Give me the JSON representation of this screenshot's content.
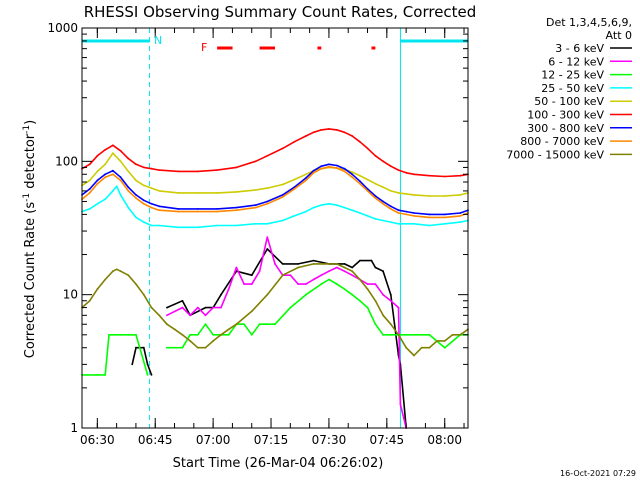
{
  "chart_data": {
    "type": "line",
    "title": "RHESSI Observing Summary Count Rates, Corrected",
    "xlabel": "Start Time (26-Mar-04 06:26:02)",
    "ylabel_main": "Corrected Count Rate (s",
    "ylabel_sup1": "-1",
    "ylabel_mid": " detector",
    "ylabel_sup2": "-1",
    "ylabel_end": ")",
    "yscale": "log",
    "ylim": [
      1,
      1000
    ],
    "xlim_minutes": [
      0,
      100
    ],
    "x_unit": "minutes after 06:26:02",
    "y_ticks": [
      {
        "value": 1,
        "label": "1"
      },
      {
        "value": 10,
        "label": "10"
      },
      {
        "value": 100,
        "label": "100"
      },
      {
        "value": 1000,
        "label": "1000"
      }
    ],
    "x_ticks": [
      {
        "minute": 3.97,
        "label": "06:30"
      },
      {
        "minute": 18.97,
        "label": "06:45"
      },
      {
        "minute": 33.97,
        "label": "07:00"
      },
      {
        "minute": 48.97,
        "label": "07:15"
      },
      {
        "minute": 63.97,
        "label": "07:30"
      },
      {
        "minute": 78.97,
        "label": "07:45"
      },
      {
        "minute": 93.97,
        "label": "08:00"
      }
    ],
    "legend": {
      "placement": "right",
      "header_lines": [
        "Det 1,3,4,5,6,9,",
        "Att 0"
      ]
    },
    "annotations": {
      "night_label": "N",
      "flare_label": "F",
      "night_intervals_minutes": [
        [
          0,
          17.5
        ],
        [
          82.5,
          100
        ]
      ],
      "night_boundaries_minutes": [
        0,
        17.5,
        82.5,
        100
      ],
      "flare_segments_minutes": [
        [
          35,
          39
        ],
        [
          46,
          50
        ],
        [
          61,
          62
        ],
        [
          75,
          76
        ]
      ],
      "night_color": "#00e5ee",
      "flare_color": "#ff0000"
    },
    "corner_text": "16-Oct-2021 07:29",
    "series": [
      {
        "name": "3 - 6 keV",
        "color": "#000000",
        "x": [
          0,
          5,
          10,
          13,
          14,
          16,
          17,
          18,
          19,
          20,
          22,
          26,
          28,
          32,
          34,
          36,
          40,
          44,
          48,
          52,
          56,
          60,
          64,
          68,
          70,
          72,
          75,
          76,
          78,
          80,
          82,
          82.5,
          84,
          86,
          88,
          92,
          96,
          100
        ],
        "y": [
          null,
          null,
          null,
          3,
          4,
          4,
          3,
          2.5,
          null,
          null,
          8,
          9,
          7,
          8,
          8,
          10,
          15,
          14,
          22,
          17,
          17,
          18,
          17,
          17,
          16,
          18,
          18,
          16,
          15,
          10,
          3.5,
          3,
          1,
          null,
          null,
          null,
          null,
          null
        ]
      },
      {
        "name": "6 - 12 keV",
        "color": "#ff00ff",
        "x": [
          0,
          5,
          10,
          20,
          22,
          26,
          28,
          30,
          32,
          34,
          36,
          38,
          40,
          42,
          44,
          46,
          48,
          50,
          52,
          54,
          56,
          58,
          60,
          62,
          64,
          66,
          68,
          70,
          72,
          74,
          76,
          78,
          80,
          82,
          82.5,
          84,
          86,
          88,
          92,
          96,
          100
        ],
        "y": [
          null,
          null,
          null,
          null,
          7,
          8,
          7,
          8,
          7,
          8,
          8,
          11,
          16,
          12,
          12,
          15,
          27,
          17,
          14,
          14,
          12,
          12,
          13,
          14,
          15,
          16,
          15,
          14,
          13,
          12,
          12,
          10,
          9,
          8,
          1.5,
          1,
          null,
          null,
          null,
          null,
          null
        ]
      },
      {
        "name": "12 - 25 keV",
        "color": "#00ff00",
        "x": [
          0,
          4,
          6,
          7,
          10,
          12,
          14,
          17,
          18,
          19,
          20,
          22,
          26,
          28,
          30,
          32,
          34,
          36,
          38,
          40,
          42,
          44,
          46,
          48,
          50,
          54,
          58,
          62,
          64,
          66,
          68,
          70,
          72,
          74,
          76,
          78,
          80,
          82,
          86,
          90,
          94,
          98,
          100
        ],
        "y": [
          2.5,
          2.5,
          2.5,
          5,
          5,
          5,
          5,
          2.5,
          null,
          null,
          null,
          4,
          4,
          5,
          5,
          6,
          5,
          5,
          5,
          6,
          6,
          5,
          6,
          6,
          6,
          8,
          10,
          12,
          13,
          12,
          11,
          10,
          9,
          8,
          6,
          5,
          5,
          5,
          5,
          5,
          4,
          5,
          5
        ]
      },
      {
        "name": "25 - 50 keV",
        "color": "#00ffff",
        "x": [
          0,
          2,
          4,
          6,
          8,
          9,
          10,
          12,
          14,
          16,
          18,
          20,
          25,
          30,
          35,
          40,
          45,
          48,
          52,
          55,
          58,
          60,
          62,
          64,
          66,
          68,
          70,
          72,
          74,
          76,
          78,
          80,
          82,
          84,
          86,
          90,
          94,
          98,
          100
        ],
        "y": [
          42,
          44,
          48,
          52,
          60,
          65,
          56,
          45,
          38,
          35,
          33,
          33,
          32,
          32,
          33,
          33,
          34,
          34,
          36,
          39,
          42,
          45,
          47,
          48,
          47,
          45,
          43,
          41,
          39,
          37,
          36,
          35,
          34,
          34,
          34,
          33,
          34,
          35,
          36
        ]
      },
      {
        "name": "50 - 100 keV",
        "color": "#cccc00",
        "x": [
          0,
          2,
          4,
          6,
          8,
          10,
          12,
          14,
          16,
          18,
          20,
          25,
          30,
          35,
          40,
          45,
          48,
          52,
          55,
          58,
          60,
          62,
          64,
          66,
          68,
          70,
          72,
          74,
          76,
          78,
          80,
          82,
          84,
          86,
          90,
          94,
          98,
          100
        ],
        "y": [
          66,
          72,
          84,
          95,
          115,
          100,
          84,
          72,
          66,
          63,
          60,
          58,
          58,
          58,
          59,
          61,
          63,
          67,
          73,
          80,
          85,
          88,
          90,
          89,
          87,
          83,
          78,
          73,
          68,
          64,
          60,
          58,
          57,
          56,
          55,
          55,
          56,
          58
        ]
      },
      {
        "name": "100 - 300 keV",
        "color": "#ff0000",
        "x": [
          0,
          2,
          4,
          6,
          8,
          10,
          12,
          14,
          16,
          18,
          20,
          25,
          30,
          35,
          40,
          45,
          48,
          52,
          55,
          58,
          60,
          62,
          64,
          66,
          68,
          70,
          72,
          74,
          76,
          78,
          80,
          82,
          84,
          86,
          90,
          94,
          98,
          100
        ],
        "y": [
          88,
          95,
          110,
          122,
          132,
          120,
          105,
          95,
          90,
          88,
          86,
          84,
          84,
          86,
          90,
          100,
          110,
          125,
          140,
          155,
          165,
          172,
          175,
          172,
          165,
          155,
          140,
          125,
          110,
          100,
          92,
          86,
          82,
          80,
          78,
          77,
          78,
          80
        ]
      },
      {
        "name": "300 - 800 keV",
        "color": "#0000ff",
        "x": [
          0,
          2,
          4,
          6,
          8,
          10,
          12,
          14,
          16,
          18,
          20,
          25,
          30,
          35,
          40,
          45,
          48,
          52,
          55,
          58,
          60,
          62,
          64,
          66,
          68,
          70,
          72,
          74,
          76,
          78,
          80,
          82,
          84,
          86,
          90,
          94,
          98,
          100
        ],
        "y": [
          56,
          62,
          72,
          80,
          85,
          76,
          64,
          56,
          51,
          48,
          46,
          44,
          44,
          44,
          45,
          47,
          50,
          56,
          64,
          75,
          85,
          92,
          95,
          93,
          88,
          80,
          71,
          62,
          55,
          50,
          46,
          43,
          42,
          41,
          40,
          40,
          41,
          43
        ]
      },
      {
        "name": "800 - 7000 keV",
        "color": "#ff8800",
        "x": [
          0,
          2,
          4,
          6,
          8,
          10,
          12,
          14,
          16,
          18,
          20,
          25,
          30,
          35,
          40,
          45,
          48,
          52,
          55,
          58,
          60,
          62,
          64,
          66,
          68,
          70,
          72,
          74,
          76,
          78,
          80,
          82,
          84,
          86,
          90,
          94,
          98,
          100
        ],
        "y": [
          52,
          58,
          68,
          76,
          80,
          72,
          60,
          53,
          48,
          45,
          43,
          42,
          42,
          42,
          43,
          45,
          48,
          54,
          62,
          72,
          82,
          88,
          91,
          89,
          84,
          76,
          68,
          60,
          53,
          48,
          44,
          41,
          40,
          39,
          38,
          38,
          39,
          41
        ]
      },
      {
        "name": "7000 - 15000 keV",
        "color": "#808000",
        "x": [
          0,
          2,
          4,
          6,
          8,
          9,
          10,
          12,
          14,
          16,
          18,
          20,
          22,
          24,
          26,
          28,
          30,
          32,
          34,
          36,
          38,
          40,
          44,
          48,
          52,
          56,
          60,
          64,
          66,
          68,
          70,
          72,
          74,
          76,
          78,
          80,
          82,
          84,
          86,
          88,
          90,
          92,
          94,
          96,
          98,
          100
        ],
        "y": [
          8,
          9,
          11,
          13,
          15,
          15.5,
          15,
          14,
          12,
          10,
          8,
          7,
          6,
          5.5,
          5,
          4.5,
          4,
          4,
          4.5,
          5,
          5.5,
          6,
          7.5,
          10,
          14,
          16,
          17,
          17,
          17,
          16,
          15,
          13,
          11,
          9,
          7,
          6,
          5,
          4,
          3.5,
          4,
          4,
          4.5,
          4.5,
          5,
          5,
          5.5
        ]
      }
    ]
  }
}
